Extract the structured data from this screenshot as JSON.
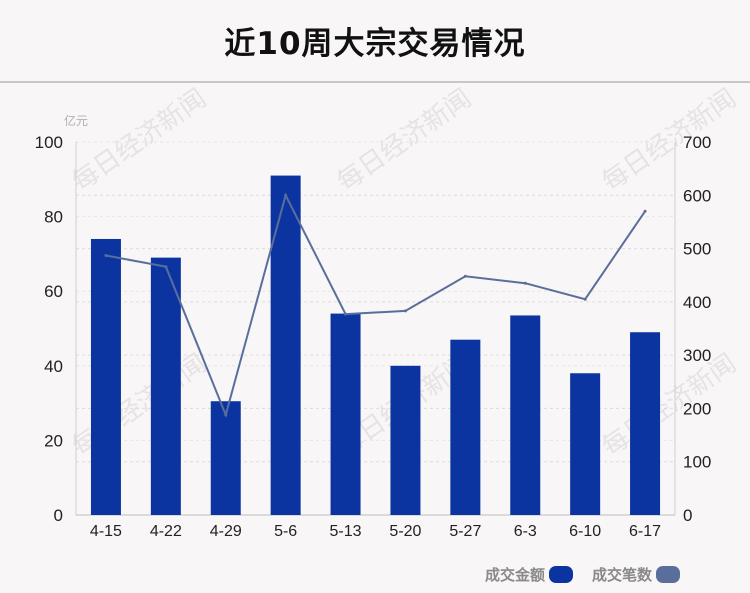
{
  "title": "近10周大宗交易情况",
  "watermark_text": "每日经济新闻",
  "chart_data": {
    "type": "bar",
    "title": "近10周大宗交易情况",
    "categories": [
      "4-15",
      "4-22",
      "4-29",
      "5-6",
      "5-13",
      "5-20",
      "5-27",
      "6-3",
      "6-10",
      "6-17"
    ],
    "y_unit": "亿元",
    "ylim": [
      0,
      100
    ],
    "y_ticks": [
      0,
      20,
      40,
      60,
      80,
      100
    ],
    "y2lim": [
      0,
      700
    ],
    "y2_ticks": [
      0,
      100,
      200,
      300,
      400,
      500,
      600,
      700
    ],
    "grid": true,
    "legend_position": "bottom-right",
    "series": [
      {
        "name": "成交金额",
        "type": "bar",
        "axis": "left",
        "color": "#0c34a0",
        "values": [
          74,
          69,
          30.5,
          91,
          54,
          40,
          47,
          53.5,
          38,
          49
        ]
      },
      {
        "name": "成交笔数",
        "type": "line",
        "axis": "right",
        "color": "#5a6e9c",
        "values": [
          487,
          466,
          188,
          600,
          377,
          383,
          448,
          435,
          405,
          570
        ]
      }
    ]
  }
}
